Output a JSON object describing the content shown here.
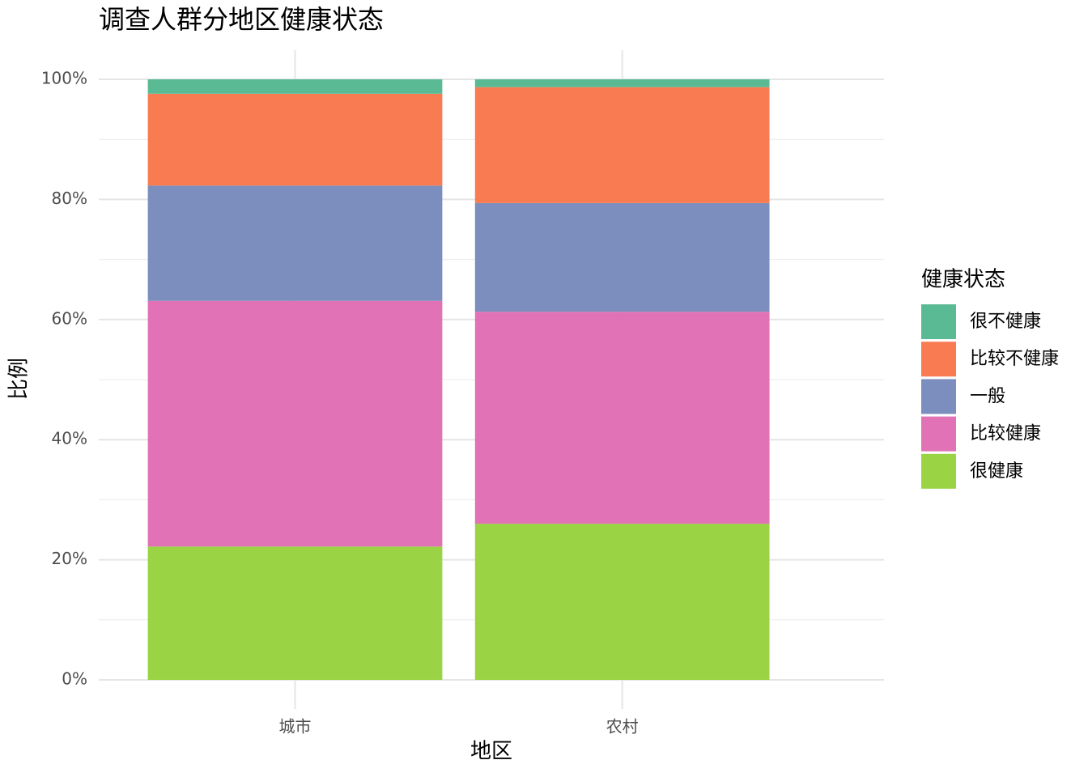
{
  "chart_data": {
    "type": "stacked_bar",
    "title": "调查人群分地区健康状态",
    "x_label": "地区",
    "y_label": "比例",
    "legend_title": "健康状态",
    "categories": [
      "城市",
      "农村"
    ],
    "series": [
      {
        "name": "很健康",
        "color": "#9ad444",
        "values": [
          22.2,
          26.0
        ]
      },
      {
        "name": "比较健康",
        "color": "#e072b5",
        "values": [
          40.9,
          35.3
        ]
      },
      {
        "name": "一般",
        "color": "#7b8ebd",
        "values": [
          19.2,
          18.1
        ]
      },
      {
        "name": "比较不健康",
        "color": "#f87b51",
        "values": [
          15.3,
          19.3
        ]
      },
      {
        "name": "很不健康",
        "color": "#5aba94",
        "values": [
          2.4,
          1.3
        ]
      }
    ],
    "ylim": [
      0,
      100
    ],
    "yticks": [
      {
        "value": 0,
        "label": "0%"
      },
      {
        "value": 20,
        "label": "20%"
      },
      {
        "value": 40,
        "label": "40%"
      },
      {
        "value": 60,
        "label": "60%"
      },
      {
        "value": 80,
        "label": "80%"
      },
      {
        "value": 100,
        "label": "100%"
      }
    ],
    "grid": true,
    "legend_position": "right"
  }
}
